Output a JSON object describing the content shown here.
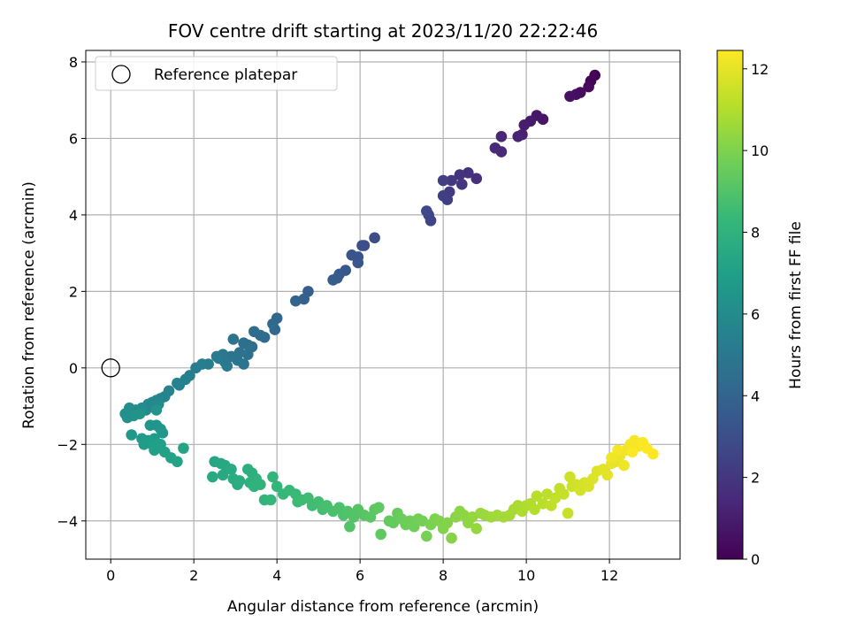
{
  "chart_data": {
    "type": "scatter",
    "title": "FOV centre drift starting at 2023/11/20 22:22:46",
    "xlabel": "Angular distance from reference (arcmin)",
    "ylabel": "Rotation from reference (arcmin)",
    "xlim": [
      -0.6,
      13.7
    ],
    "ylim": [
      -5.0,
      8.3
    ],
    "xticks": [
      0,
      2,
      4,
      6,
      8,
      10,
      12
    ],
    "yticks": [
      -4,
      -2,
      0,
      2,
      4,
      6,
      8
    ],
    "grid": true,
    "legend": {
      "placement": "upper-left",
      "entries": [
        "Reference platepar"
      ]
    },
    "reference_point": {
      "x": 0,
      "y": 0
    },
    "colorbar": {
      "label": "Hours from first FF file",
      "range": [
        0,
        12.45
      ],
      "ticks": [
        0,
        2,
        4,
        6,
        8,
        10,
        12
      ],
      "colormap": [
        "#440154",
        "#482878",
        "#3e4989",
        "#31688e",
        "#26828e",
        "#1f9e89",
        "#35b779",
        "#6ece58",
        "#b5de2b",
        "#fde725"
      ]
    },
    "series": [
      {
        "points": [
          [
            11.65,
            7.65,
            0.05
          ],
          [
            11.55,
            7.5,
            0.15
          ],
          [
            11.5,
            7.35,
            0.25
          ],
          [
            11.3,
            7.2,
            0.35
          ],
          [
            11.2,
            7.15,
            0.45
          ],
          [
            11.05,
            7.1,
            0.55
          ],
          [
            10.4,
            6.5,
            0.7
          ],
          [
            10.25,
            6.6,
            0.8
          ],
          [
            10.1,
            6.45,
            0.9
          ],
          [
            9.95,
            6.35,
            1.0
          ],
          [
            9.9,
            6.1,
            1.1
          ],
          [
            9.8,
            6.05,
            1.2
          ],
          [
            9.4,
            6.05,
            1.35
          ],
          [
            9.4,
            5.65,
            1.45
          ],
          [
            9.25,
            5.75,
            1.55
          ],
          [
            8.8,
            4.95,
            1.7
          ],
          [
            8.6,
            5.1,
            1.8
          ],
          [
            8.4,
            5.05,
            1.9
          ],
          [
            8.45,
            4.8,
            2.0
          ],
          [
            8.2,
            4.9,
            2.1
          ],
          [
            8.15,
            4.6,
            2.2
          ],
          [
            8.1,
            4.4,
            2.3
          ],
          [
            8.0,
            4.5,
            2.35
          ],
          [
            8.0,
            4.9,
            2.4
          ],
          [
            7.7,
            3.85,
            2.55
          ],
          [
            7.65,
            4.0,
            2.65
          ],
          [
            7.6,
            4.1,
            2.75
          ],
          [
            6.35,
            3.4,
            2.95
          ],
          [
            6.1,
            3.2,
            3.05
          ],
          [
            6.05,
            3.2,
            3.1
          ],
          [
            5.95,
            2.9,
            3.2
          ],
          [
            5.8,
            2.95,
            3.25
          ],
          [
            5.95,
            2.75,
            3.3
          ],
          [
            5.65,
            2.55,
            3.4
          ],
          [
            5.5,
            2.45,
            3.5
          ],
          [
            5.45,
            2.35,
            3.55
          ],
          [
            5.35,
            2.3,
            3.6
          ],
          [
            4.75,
            2.0,
            3.75
          ],
          [
            4.65,
            1.8,
            3.85
          ],
          [
            4.45,
            1.75,
            3.95
          ],
          [
            4.0,
            1.3,
            4.1
          ],
          [
            3.9,
            1.15,
            4.15
          ],
          [
            3.95,
            1.0,
            4.2
          ],
          [
            3.7,
            0.8,
            4.3
          ],
          [
            3.6,
            0.85,
            4.35
          ],
          [
            3.45,
            0.95,
            4.4
          ],
          [
            3.4,
            0.55,
            4.5
          ],
          [
            3.3,
            0.6,
            4.55
          ],
          [
            3.2,
            0.65,
            4.6
          ],
          [
            3.3,
            0.35,
            4.65
          ],
          [
            3.1,
            0.4,
            4.7
          ],
          [
            2.95,
            0.75,
            4.75
          ],
          [
            2.9,
            0.3,
            4.8
          ],
          [
            3.2,
            0.1,
            4.85
          ],
          [
            3.05,
            0.2,
            4.9
          ],
          [
            2.7,
            0.35,
            4.95
          ],
          [
            2.6,
            0.25,
            5.0
          ],
          [
            2.75,
            0.15,
            5.05
          ],
          [
            2.8,
            0.05,
            5.1
          ],
          [
            2.55,
            0.3,
            5.15
          ],
          [
            2.35,
            0.1,
            5.2
          ],
          [
            2.2,
            0.1,
            5.25
          ],
          [
            2.05,
            0.0,
            5.3
          ],
          [
            1.9,
            -0.2,
            5.4
          ],
          [
            1.8,
            -0.3,
            5.45
          ],
          [
            1.65,
            -0.45,
            5.5
          ],
          [
            1.6,
            -0.4,
            5.55
          ],
          [
            1.4,
            -0.6,
            5.6
          ],
          [
            1.3,
            -0.75,
            5.65
          ],
          [
            1.2,
            -0.8,
            5.7
          ],
          [
            1.1,
            -0.85,
            5.75
          ],
          [
            1.0,
            -0.9,
            5.8
          ],
          [
            0.9,
            -0.95,
            5.85
          ],
          [
            0.85,
            -1.1,
            5.9
          ],
          [
            1.05,
            -1.0,
            5.95
          ],
          [
            1.15,
            -0.95,
            6.0
          ],
          [
            0.75,
            -1.05,
            6.05
          ],
          [
            0.6,
            -1.1,
            6.1
          ],
          [
            0.45,
            -1.05,
            6.15
          ],
          [
            0.35,
            -1.2,
            6.2
          ],
          [
            0.4,
            -1.3,
            6.25
          ],
          [
            0.55,
            -1.25,
            6.3
          ],
          [
            0.7,
            -1.2,
            6.35
          ],
          [
            1.1,
            -1.1,
            6.4
          ],
          [
            0.95,
            -1.5,
            6.45
          ],
          [
            1.1,
            -1.5,
            6.5
          ],
          [
            1.2,
            -1.6,
            6.55
          ],
          [
            1.25,
            -1.7,
            6.6
          ],
          [
            0.5,
            -1.75,
            6.65
          ],
          [
            0.75,
            -1.85,
            6.7
          ],
          [
            0.9,
            -1.9,
            6.75
          ],
          [
            0.8,
            -2.0,
            6.8
          ],
          [
            1.05,
            -1.85,
            6.85
          ],
          [
            1.0,
            -2.0,
            6.9
          ],
          [
            1.15,
            -2.05,
            6.95
          ],
          [
            1.2,
            -2.0,
            7.0
          ],
          [
            1.05,
            -2.15,
            7.05
          ],
          [
            1.3,
            -2.2,
            7.1
          ],
          [
            1.45,
            -2.35,
            7.15
          ],
          [
            1.6,
            -2.45,
            7.2
          ],
          [
            1.75,
            -2.1,
            7.25
          ],
          [
            2.5,
            -2.45,
            7.35
          ],
          [
            2.65,
            -2.5,
            7.4
          ],
          [
            2.75,
            -2.55,
            7.45
          ],
          [
            2.45,
            -2.85,
            7.5
          ],
          [
            2.7,
            -2.8,
            7.55
          ],
          [
            2.9,
            -2.65,
            7.6
          ],
          [
            2.95,
            -2.9,
            7.65
          ],
          [
            3.05,
            -3.05,
            7.7
          ],
          [
            3.1,
            -2.95,
            7.75
          ],
          [
            3.3,
            -2.65,
            7.8
          ],
          [
            3.4,
            -2.75,
            7.85
          ],
          [
            3.5,
            -2.9,
            7.9
          ],
          [
            3.35,
            -3.0,
            7.95
          ],
          [
            3.45,
            -3.1,
            8.0
          ],
          [
            3.6,
            -3.05,
            8.05
          ],
          [
            3.7,
            -3.45,
            8.1
          ],
          [
            3.9,
            -2.85,
            8.15
          ],
          [
            4.0,
            -3.1,
            8.2
          ],
          [
            3.85,
            -3.45,
            8.25
          ],
          [
            4.15,
            -3.3,
            8.3
          ],
          [
            4.3,
            -3.2,
            8.35
          ],
          [
            4.45,
            -3.3,
            8.4
          ],
          [
            4.5,
            -3.5,
            8.45
          ],
          [
            4.6,
            -3.45,
            8.5
          ],
          [
            4.75,
            -3.4,
            8.55
          ],
          [
            4.85,
            -3.6,
            8.6
          ],
          [
            5.0,
            -3.5,
            8.65
          ],
          [
            5.1,
            -3.7,
            8.7
          ],
          [
            5.2,
            -3.6,
            8.75
          ],
          [
            5.35,
            -3.75,
            8.8
          ],
          [
            5.5,
            -3.65,
            8.85
          ],
          [
            5.6,
            -3.85,
            8.9
          ],
          [
            5.7,
            -3.75,
            8.95
          ],
          [
            5.75,
            -4.15,
            9.0
          ],
          [
            5.85,
            -3.9,
            9.05
          ],
          [
            5.95,
            -3.7,
            9.1
          ],
          [
            6.1,
            -3.85,
            9.15
          ],
          [
            6.25,
            -3.9,
            9.2
          ],
          [
            6.35,
            -3.7,
            9.25
          ],
          [
            6.45,
            -3.65,
            9.3
          ],
          [
            6.5,
            -4.35,
            9.35
          ],
          [
            6.7,
            -4.0,
            9.4
          ],
          [
            6.8,
            -4.05,
            9.45
          ],
          [
            6.9,
            -3.8,
            9.5
          ],
          [
            7.0,
            -3.95,
            9.55
          ],
          [
            7.1,
            -4.1,
            9.6
          ],
          [
            7.2,
            -4.0,
            9.65
          ],
          [
            7.3,
            -4.15,
            9.7
          ],
          [
            7.4,
            -3.95,
            9.75
          ],
          [
            7.5,
            -4.0,
            9.8
          ],
          [
            7.6,
            -4.4,
            9.85
          ],
          [
            7.7,
            -4.1,
            9.9
          ],
          [
            7.8,
            -3.95,
            9.95
          ],
          [
            7.9,
            -4.0,
            10.0
          ],
          [
            8.0,
            -4.2,
            10.05
          ],
          [
            8.1,
            -4.05,
            10.1
          ],
          [
            8.2,
            -4.45,
            10.15
          ],
          [
            8.3,
            -3.9,
            10.2
          ],
          [
            8.4,
            -3.75,
            10.25
          ],
          [
            8.5,
            -3.85,
            10.3
          ],
          [
            8.6,
            -4.05,
            10.35
          ],
          [
            8.7,
            -3.9,
            10.4
          ],
          [
            8.8,
            -4.2,
            10.45
          ],
          [
            8.9,
            -3.8,
            10.5
          ],
          [
            9.0,
            -3.85,
            10.55
          ],
          [
            9.15,
            -3.9,
            10.6
          ],
          [
            9.3,
            -3.85,
            10.65
          ],
          [
            9.45,
            -3.9,
            10.7
          ],
          [
            9.6,
            -3.85,
            10.75
          ],
          [
            9.7,
            -3.7,
            10.8
          ],
          [
            9.8,
            -3.6,
            10.85
          ],
          [
            9.9,
            -3.75,
            10.9
          ],
          [
            10.0,
            -3.6,
            10.95
          ],
          [
            10.1,
            -3.55,
            11.0
          ],
          [
            10.2,
            -3.7,
            11.05
          ],
          [
            10.25,
            -3.35,
            11.1
          ],
          [
            10.4,
            -3.55,
            11.15
          ],
          [
            10.5,
            -3.3,
            11.2
          ],
          [
            10.6,
            -3.6,
            11.25
          ],
          [
            10.7,
            -3.4,
            11.3
          ],
          [
            10.8,
            -3.15,
            11.35
          ],
          [
            10.9,
            -3.3,
            11.4
          ],
          [
            11.0,
            -3.8,
            11.45
          ],
          [
            11.1,
            -3.1,
            11.5
          ],
          [
            11.05,
            -2.85,
            11.55
          ],
          [
            11.2,
            -3.05,
            11.6
          ],
          [
            11.3,
            -3.2,
            11.65
          ],
          [
            11.4,
            -3.0,
            11.7
          ],
          [
            11.5,
            -3.1,
            11.75
          ],
          [
            11.6,
            -2.9,
            11.8
          ],
          [
            11.7,
            -2.7,
            11.85
          ],
          [
            11.85,
            -2.65,
            11.9
          ],
          [
            11.95,
            -2.8,
            11.95
          ],
          [
            12.05,
            -2.5,
            12.0
          ],
          [
            12.15,
            -2.45,
            12.05
          ],
          [
            12.25,
            -2.3,
            12.1
          ],
          [
            12.35,
            -2.55,
            12.15
          ],
          [
            12.4,
            -2.15,
            12.2
          ],
          [
            12.5,
            -2.0,
            12.25
          ],
          [
            12.6,
            -1.9,
            12.3
          ],
          [
            12.7,
            -2.05,
            12.35
          ],
          [
            12.8,
            -1.95,
            12.4
          ],
          [
            12.9,
            -2.1,
            12.42
          ],
          [
            13.05,
            -2.25,
            12.45
          ],
          [
            12.2,
            -2.15,
            12.3
          ],
          [
            12.05,
            -2.35,
            12.2
          ],
          [
            12.55,
            -2.2,
            12.4
          ]
        ]
      }
    ]
  }
}
